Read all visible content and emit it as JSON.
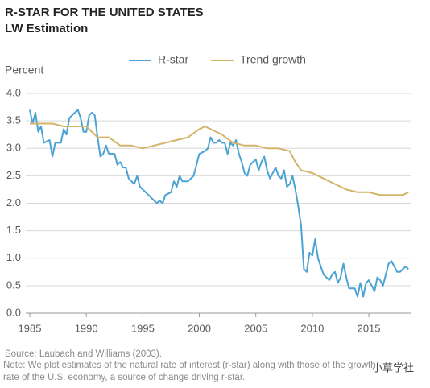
{
  "chart_data": {
    "type": "line",
    "title": "R-STAR FOR THE UNITED STATES",
    "subtitle": "LW Estimation",
    "y_label": "Percent",
    "source": "Source: Laubach and Williams (2003).",
    "note": "Note: We plot estimates of the natural rate of interest (r-star) along with those of the growth rate of the U.S. economy, a source of change driving r-star.",
    "watermark": "小草学社",
    "xlim": [
      1985,
      2018.7
    ],
    "xticks": [
      1985,
      1990,
      1995,
      2000,
      2005,
      2010,
      2015
    ],
    "ylim": [
      0,
      4
    ],
    "yticks": [
      {
        "value": 0,
        "label": "0.0"
      },
      0.5,
      {
        "value": 1,
        "label": "1.0"
      },
      1.5,
      {
        "value": 2,
        "label": "2.0"
      },
      2.5,
      {
        "value": 3,
        "label": "3.0"
      },
      3.5,
      {
        "value": 4,
        "label": "4.0"
      }
    ],
    "grid": true,
    "series": [
      {
        "name": "R-star",
        "color": "#4ba3d3",
        "x": [
          1985,
          1985.25,
          1985.5,
          1985.75,
          1986,
          1986.25,
          1986.75,
          1987,
          1987.25,
          1987.75,
          1988,
          1988.25,
          1988.5,
          1989,
          1989.25,
          1989.5,
          1989.75,
          1990,
          1990.25,
          1990.5,
          1990.75,
          1991,
          1991.25,
          1991.5,
          1991.75,
          1992,
          1992.5,
          1992.75,
          1993,
          1993.25,
          1993.5,
          1993.75,
          1994.25,
          1994.5,
          1994.75,
          1995.25,
          1995.75,
          1996,
          1996.25,
          1996.5,
          1996.75,
          1997,
          1997.5,
          1997.75,
          1998,
          1998.25,
          1998.5,
          1999,
          1999.5,
          1999.75,
          2000,
          2000.5,
          2000.75,
          2001,
          2001.25,
          2001.5,
          2001.75,
          2002,
          2002.25,
          2002.5,
          2002.75,
          2003,
          2003.25,
          2003.5,
          2003.75,
          2004,
          2004.25,
          2004.5,
          2004.75,
          2005,
          2005.25,
          2005.5,
          2005.75,
          2006,
          2006.25,
          2006.75,
          2007,
          2007.25,
          2007.5,
          2007.75,
          2008,
          2008.25,
          2008.5,
          2008.75,
          2009,
          2009.25,
          2009.5,
          2009.75,
          2010,
          2010.25,
          2010.5,
          2010.75,
          2011,
          2011.5,
          2011.75,
          2012,
          2012.25,
          2012.5,
          2012.75,
          2013,
          2013.25,
          2013.75,
          2014,
          2014.25,
          2014.5,
          2014.75,
          2015,
          2015.5,
          2015.75,
          2016,
          2016.25,
          2016.5,
          2016.75,
          2017,
          2017.25,
          2017.5,
          2017.75,
          2018,
          2018.25,
          2018.5
        ],
        "values": [
          3.7,
          3.45,
          3.65,
          3.3,
          3.4,
          3.1,
          3.15,
          2.85,
          3.1,
          3.1,
          3.35,
          3.25,
          3.55,
          3.65,
          3.7,
          3.55,
          3.3,
          3.3,
          3.6,
          3.65,
          3.6,
          3.2,
          2.85,
          2.9,
          3.05,
          2.9,
          2.9,
          2.7,
          2.75,
          2.65,
          2.65,
          2.45,
          2.35,
          2.5,
          2.3,
          2.2,
          2.1,
          2.05,
          2.0,
          2.05,
          2.0,
          2.15,
          2.2,
          2.4,
          2.3,
          2.5,
          2.4,
          2.4,
          2.5,
          2.7,
          2.9,
          2.95,
          3.0,
          3.2,
          3.1,
          3.1,
          3.15,
          3.1,
          3.1,
          2.9,
          3.1,
          3.05,
          3.15,
          2.9,
          2.75,
          2.55,
          2.5,
          2.7,
          2.75,
          2.8,
          2.6,
          2.75,
          2.85,
          2.6,
          2.45,
          2.65,
          2.5,
          2.45,
          2.6,
          2.3,
          2.35,
          2.5,
          2.25,
          1.95,
          1.6,
          0.8,
          0.75,
          1.1,
          1.05,
          1.35,
          1.0,
          0.85,
          0.7,
          0.6,
          0.7,
          0.75,
          0.55,
          0.65,
          0.9,
          0.65,
          0.45,
          0.45,
          0.3,
          0.55,
          0.3,
          0.55,
          0.6,
          0.4,
          0.65,
          0.6,
          0.5,
          0.7,
          0.9,
          0.95,
          0.85,
          0.75,
          0.75,
          0.8,
          0.85,
          0.8
        ]
      },
      {
        "name": "Trend growth",
        "color": "#d4b36a",
        "x": [
          1985,
          1986,
          1987,
          1988,
          1989,
          1990,
          1991,
          1992,
          1993,
          1994,
          1995,
          1996,
          1997,
          1998,
          1999,
          2000,
          2000.5,
          2001,
          2002,
          2003,
          2004,
          2005,
          2006,
          2007,
          2008,
          2008.5,
          2009,
          2010,
          2011,
          2012,
          2013,
          2014,
          2015,
          2016,
          2017,
          2018,
          2018.5
        ],
        "values": [
          3.45,
          3.45,
          3.45,
          3.4,
          3.4,
          3.4,
          3.2,
          3.2,
          3.05,
          3.05,
          3.0,
          3.05,
          3.1,
          3.15,
          3.2,
          3.35,
          3.4,
          3.35,
          3.25,
          3.1,
          3.05,
          3.05,
          3.0,
          3.0,
          2.95,
          2.75,
          2.6,
          2.55,
          2.45,
          2.35,
          2.25,
          2.2,
          2.2,
          2.15,
          2.15,
          2.15,
          2.2
        ]
      }
    ]
  }
}
